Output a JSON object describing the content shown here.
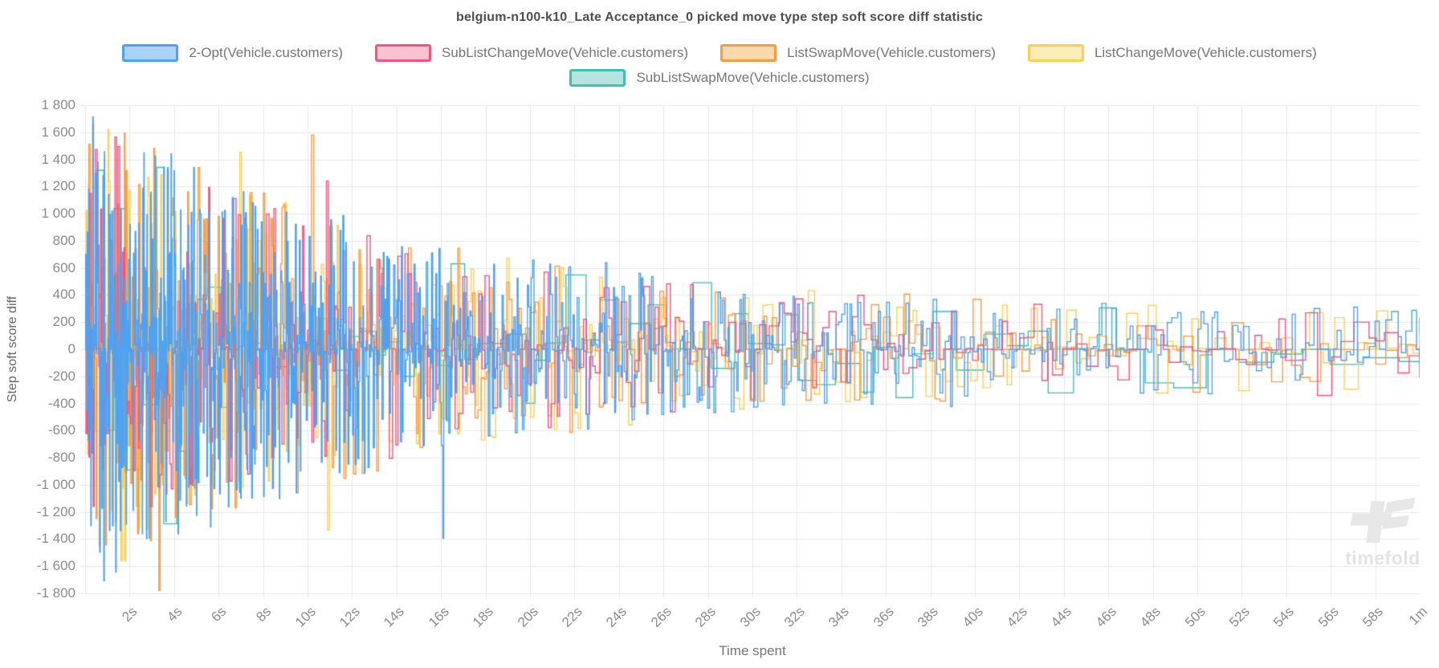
{
  "watermark": {
    "text": "timefold"
  },
  "chart_data": {
    "type": "line",
    "stepped": true,
    "title": "belgium-n100-k10_Late Acceptance_0 picked move type step soft score diff statistic",
    "xlabel": "Time spent",
    "ylabel": "Step soft score diff",
    "ylim": [
      -1800,
      1800
    ],
    "ytick_step": 200,
    "ytick_labels": [
      "1 800",
      "1 600",
      "1 400",
      "1 200",
      "1 000",
      "800",
      "600",
      "400",
      "200",
      "0",
      "-200",
      "-400",
      "-600",
      "-800",
      "-1 000",
      "-1 200",
      "-1 400",
      "-1 600",
      "-1 800"
    ],
    "x_range_seconds": [
      0,
      60
    ],
    "xtick_seconds": [
      2,
      4,
      6,
      8,
      10,
      12,
      14,
      16,
      18,
      20,
      22,
      24,
      26,
      28,
      30,
      32,
      34,
      36,
      38,
      40,
      42,
      44,
      46,
      48,
      50,
      52,
      54,
      56,
      58,
      60
    ],
    "xtick_labels": [
      "2s",
      "4s",
      "6s",
      "8s",
      "10s",
      "12s",
      "14s",
      "16s",
      "18s",
      "20s",
      "22s",
      "24s",
      "26s",
      "28s",
      "30s",
      "32s",
      "34s",
      "36s",
      "38s",
      "40s",
      "42s",
      "44s",
      "46s",
      "48s",
      "50s",
      "52s",
      "54s",
      "56s",
      "58s",
      "1m"
    ],
    "grid": true,
    "grid_color": "#e7e7e7",
    "axis_text_color": "#8b8b8b",
    "legend_position": "top",
    "series": [
      {
        "name": "2-Opt(Vehicle.customers)",
        "color": "#4DA2F1",
        "legend_fill": "#A9D3F9",
        "gen": {
          "seed": 11,
          "dt_start": 0.022,
          "dt_end": 0.22,
          "shape": 1.9,
          "amp_scale": 1.0,
          "spike_p": 0.012,
          "spike_mul": 1.8
        }
      },
      {
        "name": "SubListChangeMove(Vehicle.customers)",
        "color": "#F4537E",
        "legend_fill": "#FAC3D2",
        "gen": {
          "seed": 23,
          "dt_start": 0.06,
          "dt_end": 0.55,
          "shape": 2.2,
          "amp_scale": 0.95,
          "spike_p": 0.012,
          "spike_mul": 1.8
        }
      },
      {
        "name": "ListSwapMove(Vehicle.customers)",
        "color": "#F89B40",
        "legend_fill": "#FCD9AC",
        "gen": {
          "seed": 37,
          "dt_start": 0.045,
          "dt_end": 0.5,
          "shape": 2.15,
          "amp_scale": 1.0,
          "spike_p": 0.014,
          "spike_mul": 1.8
        }
      },
      {
        "name": "ListChangeMove(Vehicle.customers)",
        "color": "#FBCE55",
        "legend_fill": "#FDEBB8",
        "gen": {
          "seed": 49,
          "dt_start": 0.045,
          "dt_end": 0.5,
          "shape": 2.15,
          "amp_scale": 0.98,
          "spike_p": 0.014,
          "spike_mul": 1.8
        }
      },
      {
        "name": "SubListSwapMove(Vehicle.customers)",
        "color": "#3FBFB0",
        "legend_fill": "#B5E4DE",
        "gen": {
          "seed": 61,
          "dt_start": 0.5,
          "dt_end": 1.3,
          "shape": 1.8,
          "amp_scale": 0.95,
          "spike_p": 0.05,
          "spike_mul": 2.0
        }
      }
    ],
    "draw_order": [
      4,
      3,
      2,
      1,
      0
    ],
    "envelope": {
      "base": 290,
      "amplitude": 1510,
      "tau_seconds": 14.5
    },
    "description": "Step soft score diff of each picked move type per solver step over 60s. Values are dense noise centered on 0; the spread decays from roughly ±1700 in the first seconds to roughly ±400 near 60s, with occasional larger spikes (e.g. ~±700 around 42-51s)."
  }
}
